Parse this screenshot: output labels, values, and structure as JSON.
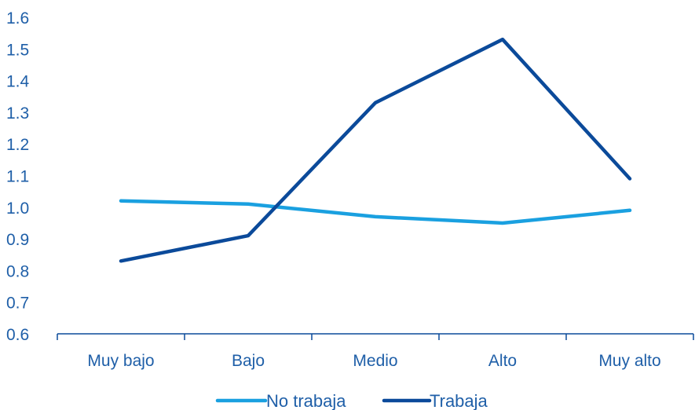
{
  "chart_data": {
    "type": "line",
    "categories": [
      "Muy bajo",
      "Bajo",
      "Medio",
      "Alto",
      "Muy alto"
    ],
    "series": [
      {
        "name": "No trabaja",
        "color": "#1aa0e0",
        "values": [
          1.02,
          1.01,
          0.97,
          0.95,
          0.99
        ]
      },
      {
        "name": "Trabaja",
        "color": "#0b4a9a",
        "values": [
          0.83,
          0.91,
          1.33,
          1.53,
          1.09
        ]
      }
    ],
    "title": "",
    "xlabel": "",
    "ylabel": "",
    "ylim": [
      0.6,
      1.6
    ],
    "yticks": [
      "0.6",
      "0.7",
      "0.8",
      "0.9",
      "1.0",
      "1.1",
      "1.2",
      "1.3",
      "1.4",
      "1.5",
      "1.6"
    ],
    "grid": false,
    "legend_position": "bottom-center",
    "axis_color": "#0b4a9a",
    "text_color": "#1f5fa8"
  }
}
